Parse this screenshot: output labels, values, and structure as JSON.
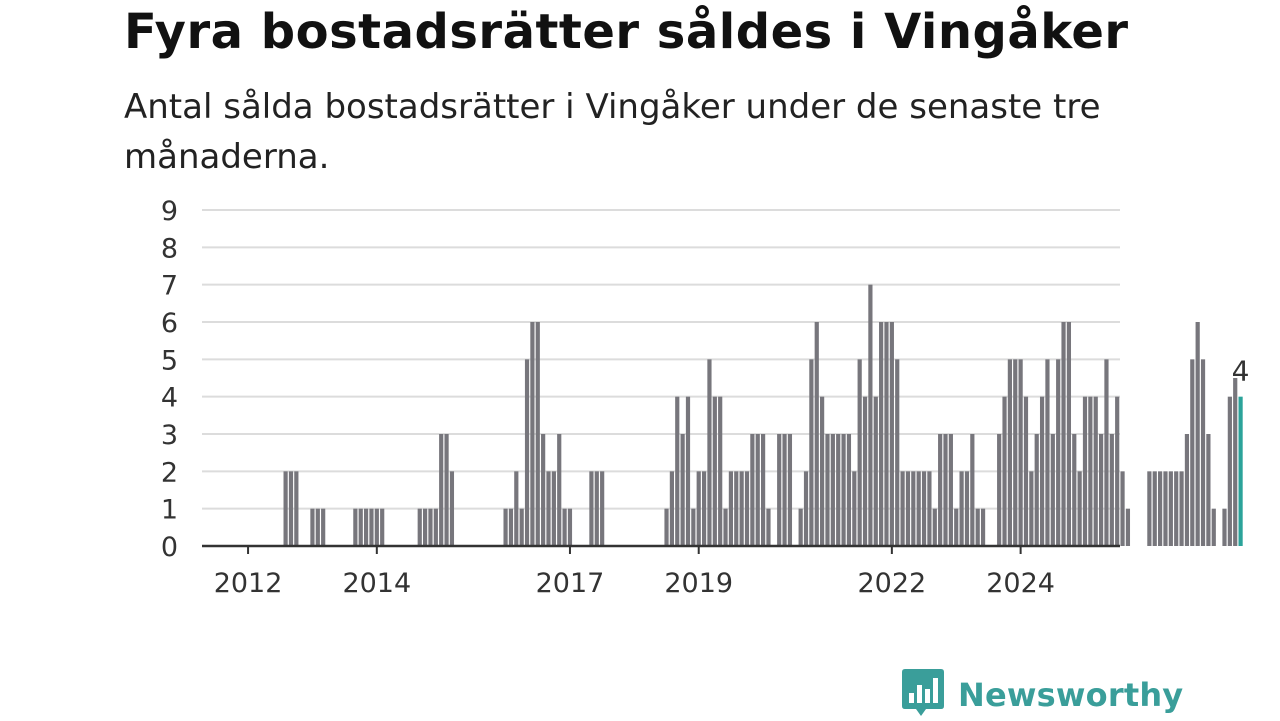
{
  "header": {
    "title": "Fyra bostadsrätter såldes i Vingåker",
    "subtitle": "Antal sålda bostadsrätter i Vingåker under de senaste tre månaderna."
  },
  "branding": {
    "name": "Newsworthy",
    "color": "#3a9e9a",
    "icon": "newsworthy-logo-icon"
  },
  "colors": {
    "bar": "#77767c",
    "highlight": "#2ba39a",
    "grid": "#dcdcdc",
    "axis": "#333333"
  },
  "chart_data": {
    "type": "bar",
    "title": "Fyra bostadsrätter såldes i Vingåker",
    "subtitle": "Antal sålda bostadsrätter i Vingåker under de senaste tre månaderna.",
    "xlabel": "",
    "ylabel": "",
    "ylim": [
      0,
      9
    ],
    "yticks": [
      0,
      1,
      2,
      3,
      4,
      5,
      6,
      7,
      8,
      9
    ],
    "xticks": [
      "2012",
      "2014",
      "2017",
      "2019",
      "2022",
      "2024"
    ],
    "grid": true,
    "legend": "none",
    "series": [
      {
        "values": [
          0,
          0,
          0,
          0,
          0,
          0,
          0,
          0,
          0,
          0,
          0,
          2,
          2,
          2,
          0,
          0,
          1,
          1,
          1,
          0,
          0,
          0,
          0,
          0,
          1,
          1,
          1,
          1,
          1,
          1,
          0,
          0,
          0,
          0,
          0,
          0,
          1,
          1,
          1,
          1,
          3,
          3,
          2,
          0,
          0,
          0,
          0,
          0,
          0,
          0,
          0,
          0,
          1,
          1,
          2,
          1,
          5,
          6,
          6,
          3,
          2,
          2,
          3,
          1,
          1,
          0,
          0,
          0,
          2,
          2,
          2,
          0,
          0,
          0,
          0,
          0,
          0,
          0,
          0,
          0,
          0,
          0,
          1,
          2,
          4,
          3,
          4,
          1,
          2,
          2,
          5,
          4,
          4,
          1,
          2,
          2,
          2,
          2,
          3,
          3,
          3,
          1,
          0,
          3,
          3,
          3,
          0,
          1,
          2,
          5,
          6,
          4,
          3,
          3,
          3,
          3,
          3,
          2,
          5,
          4,
          7,
          4,
          6,
          6,
          6,
          5,
          2,
          2,
          2,
          2,
          2,
          2,
          1,
          3,
          3,
          3,
          1,
          2,
          2,
          3,
          1,
          1,
          0,
          0,
          3,
          4,
          5,
          5,
          5,
          4,
          2,
          3,
          4,
          5,
          3,
          5,
          6,
          6,
          3,
          2,
          4,
          4,
          4,
          3,
          5,
          3,
          4,
          2,
          1,
          0,
          0,
          0,
          2,
          2,
          2,
          2,
          2,
          2,
          2,
          3,
          5,
          6,
          5,
          3,
          1,
          0,
          1,
          4,
          4.5,
          4
        ]
      }
    ],
    "annotations": [
      {
        "text": "4"
      }
    ]
  }
}
